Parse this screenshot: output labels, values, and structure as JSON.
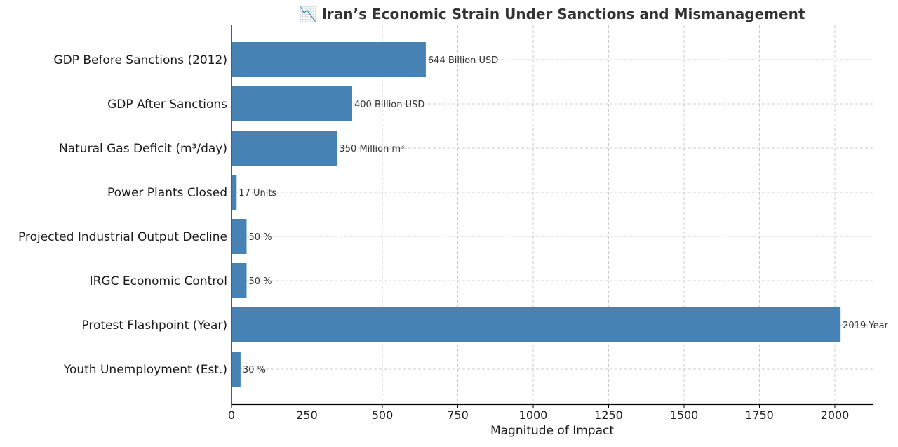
{
  "chart_data": {
    "type": "bar",
    "orientation": "horizontal",
    "title": "📉 Iran’s Economic Strain Under Sanctions and Mismanagement",
    "title_icon": "chart-decreasing-icon",
    "xlabel": "Magnitude of Impact",
    "ylabel": "",
    "xlim": [
      0,
      2120
    ],
    "x_ticks": [
      0,
      250,
      500,
      750,
      1000,
      1250,
      1500,
      1750,
      2000
    ],
    "x_tick_labels": [
      "0",
      "250",
      "500",
      "750",
      "1000",
      "1250",
      "1500",
      "1750",
      "2000"
    ],
    "grid": true,
    "bar_color": "#4682b4",
    "categories": [
      "GDP Before Sanctions (2012)",
      "GDP After Sanctions",
      "Natural Gas Deficit (m³/day)",
      "Power Plants Closed",
      "Projected Industrial Output Decline",
      "IRGC Economic Control",
      "Protest Flashpoint (Year)",
      "Youth Unemployment (Est.)"
    ],
    "values": [
      644,
      400,
      350,
      17,
      50,
      50,
      2019,
      30
    ],
    "data_labels": [
      "644 Billion USD",
      "400 Billion USD",
      "350 Million m³",
      "17 Units",
      "50 %",
      "50 %",
      "2019 Year",
      "30 %"
    ]
  }
}
